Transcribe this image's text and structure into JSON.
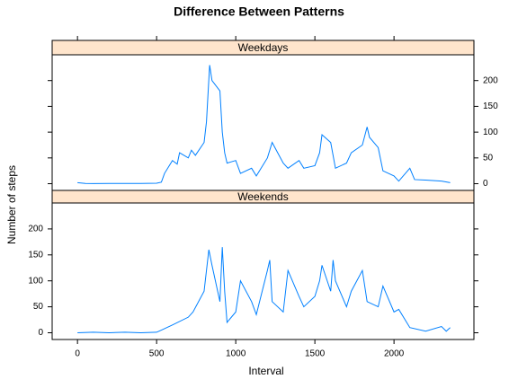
{
  "chart_data": {
    "type": "line",
    "title": "Difference Between Patterns",
    "x_label": "Interval",
    "y_label": "Number of steps",
    "xlim": [
      -160,
      2505
    ],
    "xticks": [
      0,
      500,
      1000,
      1500,
      2000
    ],
    "ylim": [
      -13,
      250
    ],
    "yticks": [
      0,
      50,
      100,
      150,
      200
    ],
    "series": [
      {
        "name": "Weekdays",
        "color": "#0080ff",
        "x": [
          0,
          50,
          100,
          200,
          300,
          400,
          500,
          530,
          550,
          600,
          630,
          645,
          700,
          720,
          745,
          800,
          815,
          835,
          850,
          900,
          915,
          930,
          945,
          1000,
          1030,
          1100,
          1130,
          1200,
          1230,
          1300,
          1330,
          1400,
          1430,
          1500,
          1530,
          1545,
          1600,
          1630,
          1700,
          1730,
          1800,
          1830,
          1845,
          1900,
          1930,
          2000,
          2030,
          2100,
          2130,
          2200,
          2300,
          2355
        ],
        "values": [
          2,
          0.5,
          0.2,
          0.5,
          0.4,
          0.5,
          1,
          3,
          20,
          45,
          38,
          60,
          50,
          65,
          55,
          80,
          120,
          230,
          200,
          180,
          100,
          60,
          40,
          45,
          20,
          30,
          15,
          50,
          80,
          40,
          30,
          45,
          30,
          35,
          60,
          95,
          80,
          30,
          40,
          60,
          75,
          110,
          90,
          70,
          25,
          15,
          5,
          30,
          8,
          7,
          5,
          2
        ]
      },
      {
        "name": "Weekends",
        "color": "#0080ff",
        "x": [
          0,
          100,
          200,
          300,
          400,
          500,
          530,
          600,
          700,
          730,
          800,
          830,
          850,
          900,
          915,
          930,
          945,
          1000,
          1030,
          1100,
          1130,
          1200,
          1215,
          1230,
          1300,
          1330,
          1400,
          1430,
          1500,
          1530,
          1545,
          1600,
          1615,
          1630,
          1700,
          1730,
          1800,
          1830,
          1900,
          1930,
          2000,
          2030,
          2100,
          2200,
          2300,
          2330,
          2355
        ],
        "values": [
          0,
          1,
          0,
          1,
          0,
          1,
          5,
          15,
          30,
          40,
          80,
          160,
          130,
          60,
          165,
          80,
          20,
          40,
          100,
          60,
          35,
          120,
          140,
          60,
          40,
          120,
          70,
          50,
          70,
          100,
          130,
          80,
          140,
          100,
          50,
          80,
          120,
          60,
          50,
          90,
          40,
          45,
          10,
          3,
          12,
          3,
          10
        ]
      }
    ]
  }
}
